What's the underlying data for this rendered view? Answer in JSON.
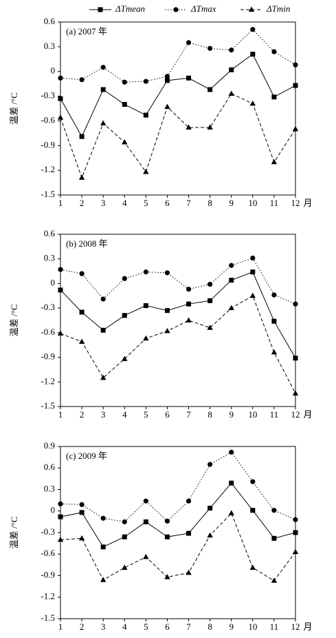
{
  "chart_data": [
    {
      "type": "line",
      "title": "(a) 2007 年",
      "xlabel": "月",
      "ylabel": "温差 /°C",
      "x": [
        1,
        2,
        3,
        4,
        5,
        6,
        7,
        8,
        9,
        10,
        11,
        12
      ],
      "xlim": [
        1,
        12
      ],
      "xticks": [
        1,
        2,
        3,
        4,
        5,
        6,
        7,
        8,
        9,
        10,
        11,
        12
      ],
      "ylim": [
        -1.5,
        0.6
      ],
      "yticks": [
        0.6,
        0.3,
        0,
        -0.3,
        -0.6,
        -0.9,
        -1.2,
        -1.5
      ],
      "series": [
        {
          "name": "ΔTmean",
          "color": "#000000",
          "dash": "solid",
          "marker": "square",
          "values": [
            -0.33,
            -0.79,
            -0.22,
            -0.4,
            -0.53,
            -0.11,
            -0.08,
            -0.22,
            0.02,
            0.21,
            -0.31,
            -0.17
          ]
        },
        {
          "name": "ΔTmax",
          "color": "#000000",
          "dash": "dotted",
          "marker": "circle",
          "values": [
            -0.08,
            -0.1,
            0.05,
            -0.13,
            -0.12,
            -0.06,
            0.35,
            0.28,
            0.26,
            0.51,
            0.24,
            0.08
          ]
        },
        {
          "name": "ΔTmin",
          "color": "#000000",
          "dash": "dashed",
          "marker": "triangle",
          "values": [
            -0.56,
            -1.29,
            -0.63,
            -0.86,
            -1.22,
            -0.43,
            -0.68,
            -0.68,
            -0.27,
            -0.39,
            -1.1,
            -0.7
          ]
        }
      ]
    },
    {
      "type": "line",
      "title": "(b) 2008 年",
      "xlabel": "月",
      "ylabel": "温差 /°C",
      "x": [
        1,
        2,
        3,
        4,
        5,
        6,
        7,
        8,
        9,
        10,
        11,
        12
      ],
      "xlim": [
        1,
        12
      ],
      "xticks": [
        1,
        2,
        3,
        4,
        5,
        6,
        7,
        8,
        9,
        10,
        11,
        12
      ],
      "ylim": [
        -1.5,
        0.6
      ],
      "yticks": [
        0.6,
        0.3,
        0,
        -0.3,
        -0.6,
        -0.9,
        -1.2,
        -1.5
      ],
      "series": [
        {
          "name": "ΔTmean",
          "color": "#000000",
          "dash": "solid",
          "marker": "square",
          "values": [
            -0.08,
            -0.35,
            -0.57,
            -0.39,
            -0.27,
            -0.33,
            -0.25,
            -0.21,
            0.04,
            0.14,
            -0.46,
            -0.91
          ]
        },
        {
          "name": "ΔTmax",
          "color": "#000000",
          "dash": "dotted",
          "marker": "circle",
          "values": [
            0.17,
            0.12,
            -0.19,
            0.06,
            0.14,
            0.13,
            -0.07,
            -0.01,
            0.22,
            0.31,
            -0.14,
            -0.25
          ]
        },
        {
          "name": "ΔTmin",
          "color": "#000000",
          "dash": "dashed",
          "marker": "triangle",
          "values": [
            -0.61,
            -0.71,
            -1.15,
            -0.92,
            -0.67,
            -0.58,
            -0.45,
            -0.54,
            -0.3,
            -0.15,
            -0.84,
            -1.34
          ]
        }
      ]
    },
    {
      "type": "line",
      "title": "(c) 2009 年",
      "xlabel": "月",
      "ylabel": "温差 /°C",
      "x": [
        1,
        2,
        3,
        4,
        5,
        6,
        7,
        8,
        9,
        10,
        11,
        12
      ],
      "xlim": [
        1,
        12
      ],
      "xticks": [
        1,
        2,
        3,
        4,
        5,
        6,
        7,
        8,
        9,
        10,
        11,
        12
      ],
      "ylim": [
        -1.5,
        0.9
      ],
      "yticks": [
        0.9,
        0.6,
        0.3,
        0,
        -0.3,
        -0.6,
        -0.9,
        -1.2,
        -1.5
      ],
      "series": [
        {
          "name": "ΔTmean",
          "color": "#000000",
          "dash": "solid",
          "marker": "square",
          "values": [
            -0.08,
            -0.02,
            -0.5,
            -0.36,
            -0.15,
            -0.36,
            -0.31,
            0.04,
            0.39,
            0.01,
            -0.38,
            -0.3
          ]
        },
        {
          "name": "ΔTmax",
          "color": "#000000",
          "dash": "dotted",
          "marker": "circle",
          "values": [
            0.1,
            0.09,
            -0.1,
            -0.15,
            0.14,
            -0.14,
            0.14,
            0.65,
            0.82,
            0.41,
            0.01,
            -0.12
          ]
        },
        {
          "name": "ΔTmin",
          "color": "#000000",
          "dash": "dashed",
          "marker": "triangle",
          "values": [
            -0.4,
            -0.38,
            -0.96,
            -0.79,
            -0.64,
            -0.92,
            -0.86,
            -0.34,
            -0.03,
            -0.79,
            -0.97,
            -0.57
          ]
        }
      ]
    }
  ]
}
